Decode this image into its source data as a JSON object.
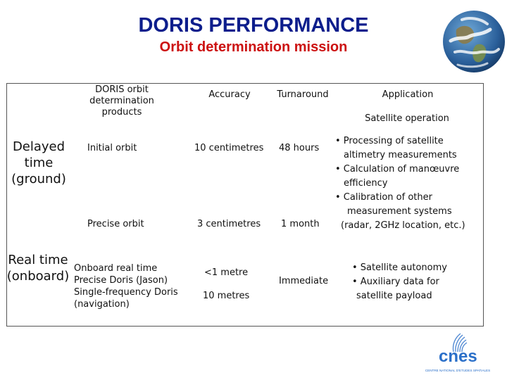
{
  "header": {
    "title": "DORIS PERFORMANCE",
    "subtitle": "Orbit determination mission"
  },
  "table": {
    "columns": {
      "products": "DORIS orbit determination products",
      "accuracy": "Accuracy",
      "turnaround": "Turnaround",
      "application": "Application",
      "application_sub": "Satellite operation"
    },
    "delayed": {
      "label": "Delayed time (ground)",
      "initial_product": "Initial orbit",
      "initial_accuracy": "10 centimetres",
      "initial_turnaround": "48 hours",
      "precise_product": "Precise orbit",
      "precise_accuracy": "3 centimetres",
      "precise_turnaround": "1 month",
      "application_lines": [
        "• Processing of satellite",
        "altimetry measurements",
        "• Calculation of manœuvre",
        "efficiency",
        "• Calibration of other",
        "measurement systems",
        "(radar, 2GHz location, etc.)"
      ]
    },
    "realtime": {
      "label": "Real time (onboard)",
      "product_lines": [
        "Onboard real time",
        "Precise Doris (Jason)",
        "Single-frequency Doris",
        "(navigation)"
      ],
      "accuracy_1": "<1 metre",
      "accuracy_2": "10 metres",
      "turnaround": "Immediate",
      "application_lines": [
        "• Satellite autonomy",
        "• Auxiliary data for",
        "satellite payload"
      ]
    }
  },
  "logo": {
    "text": "cnes",
    "tagline": "CENTRE NATIONAL D'ETUDES SPATIALES"
  },
  "colors": {
    "title": "#0d1e8c",
    "subtitle": "#cc1111",
    "logo_blue": "#2a6fc9"
  }
}
